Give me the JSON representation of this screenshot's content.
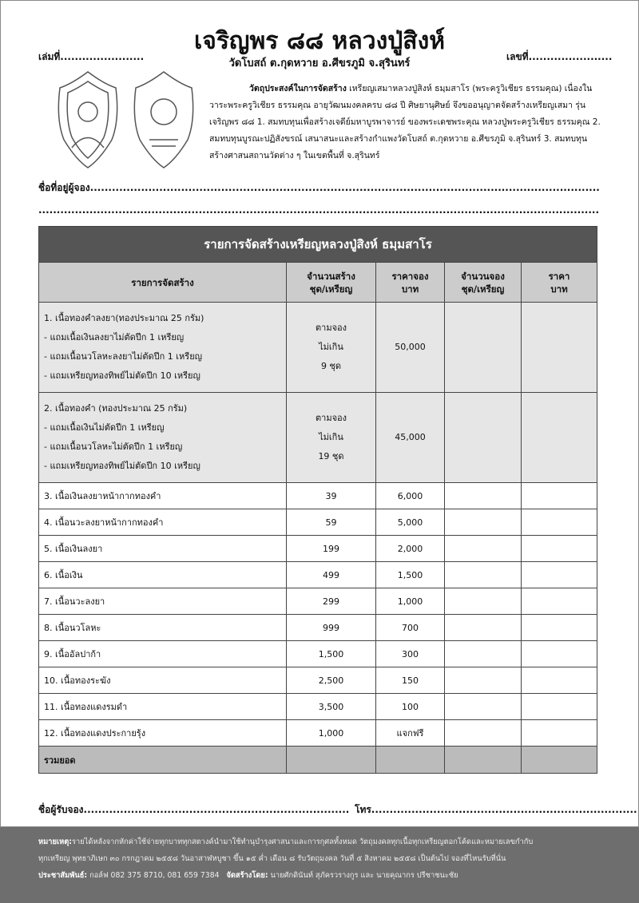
{
  "header": {
    "title": "เจริญพร ๘๘ หลวงปู่สิงห์",
    "subtitle": "วัดโบสถ์ ต.กุดหวาย อ.ศีขรภูมิ จ.สุรินทร์",
    "book_no_label": "เล่มที่.......................",
    "number_label": "เลขที่......................."
  },
  "description": {
    "lead": "วัตถุประสงค์ในการจัดสร้าง",
    "text": "เหรียญเสมาหลวงปู่สิงห์ ธมฺมสาโร (พระครูวิเชียร ธรรมคุณ) เนื่องในวาระพระครูวิเชียร ธรรมคุณ อายุวัฒนมงคลครบ ๘๘ ปี ศิษยานุศิษย์ จึงขออนุญาตจัดสร้างเหรียญเสมา รุ่นเจริญพร ๘๘ 1. สมทบทุนเพื่อสร้างเจดีย์มหาบูรพาจารย์ ของพระเดชพระคุณ หลวงปู่พระครูวิเชียร ธรรมคุณ 2. สมทบทุนบูรณะปฏิสังขรณ์ เสนาสนะและสร้างกำแพงวัดโบสถ์ ต.กุดหวาย อ.ศีขรภูมิ จ.สุรินทร์ 3. สมทบทุนสร้างศาสนสถานวัดต่าง ๆ ในเขตพื้นที่ จ.สุรินทร์"
  },
  "address_label": "ชื่อที่อยู่ผู้จอง.............................................................................................................................................................",
  "address_line2": "...........................................................................................................................................................................................",
  "table": {
    "title": "รายการจัดสร้างเหรียญหลวงปู่สิงห์ ธมฺมสาโร",
    "headers": [
      "รายการจัดสร้าง",
      "จำนวนสร้าง\nชุด/เหรียญ",
      "ราคาจอง\nบาท",
      "จำนวนจอง\nชุด/เหรียญ",
      "ราคา\nบาท"
    ],
    "big_rows": [
      {
        "lines": [
          "1. เนื้อทองคำลงยา(ทองประมาณ 25 กรัม)",
          "- แถมเนื้อเงินลงยาไม่ตัดปีก 1 เหรียญ",
          "- แถมเนื้อนวโลหะลงยาไม่ตัดปีก 1 เหรียญ",
          "- แถมเหรียญทองทิพย์ไม่ตัดปีก 10 เหรียญ"
        ],
        "qty": "ตามจอง\nไม่เกิน\n9 ชุด",
        "price": "50,000"
      },
      {
        "lines": [
          "2. เนื้อทองคำ (ทองประมาณ 25 กรัม)",
          "- แถมเนื้อเงินไม่ตัดปีก 1 เหรียญ",
          "- แถมเนื้อนวโลหะไม่ตัดปีก 1 เหรียญ",
          "- แถมเหรียญทองทิพย์ไม่ตัดปีก 10 เหรียญ"
        ],
        "qty": "ตามจอง\nไม่เกิน\n19 ชุด",
        "price": "45,000"
      }
    ],
    "rows": [
      {
        "item": "3. เนื้อเงินลงยาหน้ากากทองคำ",
        "qty": "39",
        "price": "6,000"
      },
      {
        "item": "4. เนื้อนวะลงยาหน้ากากทองคำ",
        "qty": "59",
        "price": "5,000"
      },
      {
        "item": "5. เนื้อเงินลงยา",
        "qty": "199",
        "price": "2,000"
      },
      {
        "item": "6. เนื้อเงิน",
        "qty": "499",
        "price": "1,500"
      },
      {
        "item": "7. เนื้อนวะลงยา",
        "qty": "299",
        "price": "1,000"
      },
      {
        "item": "8. เนื้อนวโลหะ",
        "qty": "999",
        "price": "700"
      },
      {
        "item": "9. เนื้ออัลปาก้า",
        "qty": "1,500",
        "price": "300"
      },
      {
        "item": "10. เนื้อทองระฆัง",
        "qty": "2,500",
        "price": "150"
      },
      {
        "item": "11. เนื้อทองแดงรมดำ",
        "qty": "3,500",
        "price": "100"
      },
      {
        "item": "12. เนื้อทองแดงประกายรุ้ง",
        "qty": "1,000",
        "price": "แจกฟรี"
      }
    ],
    "total_label": "รวมยอด"
  },
  "receiver_label": "ชื่อผู้รับจอง.........................................................................",
  "phone_label": "โทร.........................................................................",
  "footer": {
    "note_label": "หมายเหตุ:",
    "note": "รายได้หลังจากหักค่าใช้จ่ายทุกบาททุกสตางค์นำมาใช้ทำนุบำรุงศาสนาและการกุศลทั้งหมด วัตถุมงคลทุกเนื้อทุกเหรียญตอกโค้ดและหมายเลขกำกับ",
    "note2": "ทุกเหรียญ พุทธาภิเษก ๓๐ กรกฎาคม ๒๕๕๘ วันอาสาฬหบูชา ขึ้น ๑๕ ค่ำ เดือน ๘ รับวัตถุมงคล วันที่ ๕ สิงหาคม ๒๕๕๘ เป็นต้นไป จองที่ไหนรับที่นั่น",
    "pr_label": "ประชาสัมพันธ์:",
    "pr": "กอล์ฟ 082 375 8710, 081 659 7384",
    "by_label": "จัดสร้างโดย:",
    "by": "นายศักดินันท์ สุภัครวรางกูร และ นายคุณากร ปรีชาชนะชัย"
  }
}
